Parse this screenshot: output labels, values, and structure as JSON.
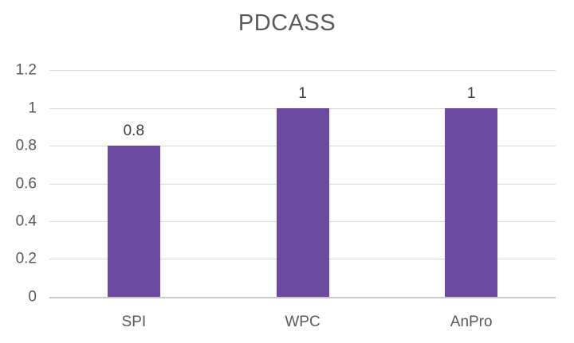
{
  "chart_data": {
    "type": "bar",
    "title": "PDCASS",
    "categories": [
      "SPI",
      "WPC",
      "AnPro"
    ],
    "values": [
      0.8,
      1,
      1
    ],
    "value_labels": [
      "0.8",
      "1",
      "1"
    ],
    "ytick_labels": [
      "1.2",
      "1",
      "0.8",
      "0.6",
      "0.4",
      "0.2",
      "0"
    ],
    "ylim": [
      0,
      1.2
    ],
    "xlabel": "",
    "ylabel": "",
    "grid": true,
    "legend": false,
    "colors": {
      "bar": "#6b4a9f",
      "title_text": "#595959",
      "axis_tick_text": "#595959",
      "data_label_text": "#404040",
      "gridline": "#d9d9d9",
      "axis_line": "#c9c9c9",
      "background": "#ffffff"
    }
  }
}
